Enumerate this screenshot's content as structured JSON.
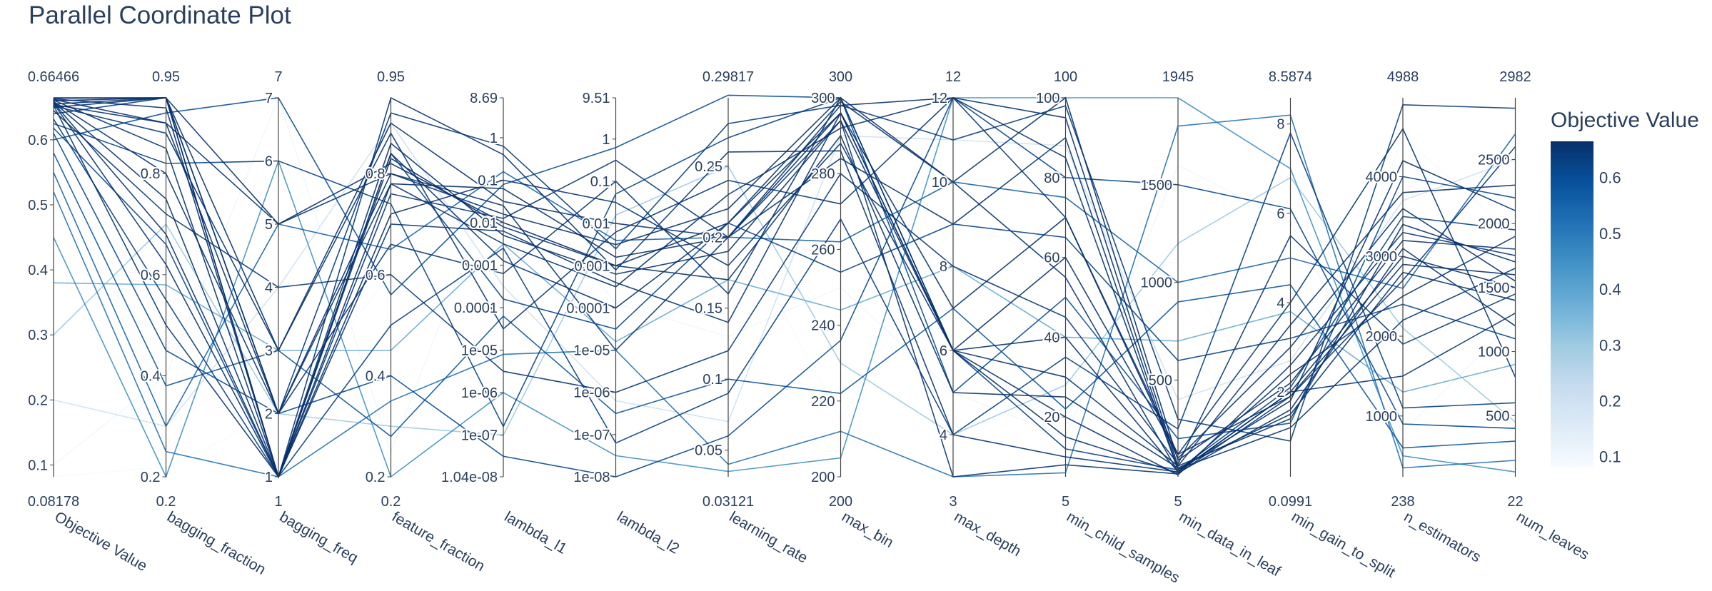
{
  "title": "Parallel Coordinate Plot",
  "colors": {
    "line_dark": "#08306b",
    "colorscale": [
      "#f7fbff",
      "#deebf7",
      "#c6dbef",
      "#9ecae1",
      "#6baed6",
      "#4292c6",
      "#2171b5",
      "#08519c",
      "#08306b"
    ],
    "axis": "#444444",
    "text": "#2a3f5f"
  },
  "chart_data": {
    "type": "parallel_coordinates",
    "title": "Parallel Coordinate Plot",
    "colorbar": {
      "title": "Objective Value",
      "ticks": [
        "0.1",
        "0.2",
        "0.3",
        "0.4",
        "0.5",
        "0.6"
      ],
      "range": [
        0.08178,
        0.66466
      ]
    },
    "dimensions": [
      {
        "label": "Objective Value",
        "range": [
          0.08178,
          0.66466
        ],
        "min_label": "0.08178",
        "max_label": "0.66466",
        "ticks": [
          [
            0.1,
            "0.1"
          ],
          [
            0.2,
            "0.2"
          ],
          [
            0.3,
            "0.3"
          ],
          [
            0.4,
            "0.4"
          ],
          [
            0.5,
            "0.5"
          ],
          [
            0.6,
            "0.6"
          ]
        ],
        "scale": "linear"
      },
      {
        "label": "bagging_fraction",
        "range": [
          0.2,
          0.95
        ],
        "min_label": "0.2",
        "max_label": "0.95",
        "ticks": [
          [
            0.2,
            "0.2"
          ],
          [
            0.4,
            "0.4"
          ],
          [
            0.6,
            "0.6"
          ],
          [
            0.8,
            "0.8"
          ]
        ],
        "scale": "linear"
      },
      {
        "label": "bagging_freq",
        "range": [
          1,
          7
        ],
        "min_label": "1",
        "max_label": "7",
        "ticks": [
          [
            1,
            "1"
          ],
          [
            2,
            "2"
          ],
          [
            3,
            "3"
          ],
          [
            4,
            "4"
          ],
          [
            5,
            "5"
          ],
          [
            6,
            "6"
          ],
          [
            7,
            "7"
          ]
        ],
        "scale": "linear"
      },
      {
        "label": "feature_fraction",
        "range": [
          0.2,
          0.95
        ],
        "min_label": "0.2",
        "max_label": "0.95",
        "ticks": [
          [
            0.2,
            "0.2"
          ],
          [
            0.4,
            "0.4"
          ],
          [
            0.6,
            "0.6"
          ],
          [
            0.8,
            "0.8"
          ]
        ],
        "scale": "linear"
      },
      {
        "label": "lambda_l1",
        "range": [
          -7.983,
          0.939
        ],
        "min_label": "",
        "max_label": "",
        "ticks": [
          [
            -7.983,
            "1.04e-08"
          ],
          [
            -7,
            "1e-07"
          ],
          [
            -6,
            "1e-06"
          ],
          [
            -5,
            "1e-05"
          ],
          [
            -4,
            "0.0001"
          ],
          [
            -3,
            "0.001"
          ],
          [
            -2,
            "0.01"
          ],
          [
            -1,
            "0.1"
          ],
          [
            0,
            "1"
          ],
          [
            0.939,
            "8.69"
          ]
        ],
        "scale": "log"
      },
      {
        "label": "lambda_l2",
        "range": [
          -8,
          0.978
        ],
        "min_label": "",
        "max_label": "",
        "ticks": [
          [
            -8,
            "1e-08"
          ],
          [
            -7,
            "1e-07"
          ],
          [
            -6,
            "1e-06"
          ],
          [
            -5,
            "1e-05"
          ],
          [
            -4,
            "0.0001"
          ],
          [
            -3,
            "0.001"
          ],
          [
            -2,
            "0.01"
          ],
          [
            -1,
            "0.1"
          ],
          [
            0,
            "1"
          ],
          [
            0.978,
            "9.51"
          ]
        ],
        "scale": "log"
      },
      {
        "label": "learning_rate",
        "range": [
          0.03121,
          0.29817
        ],
        "min_label": "0.03121",
        "max_label": "0.29817",
        "ticks": [
          [
            0.05,
            "0.05"
          ],
          [
            0.1,
            "0.1"
          ],
          [
            0.15,
            "0.15"
          ],
          [
            0.2,
            "0.2"
          ],
          [
            0.25,
            "0.25"
          ]
        ],
        "scale": "linear"
      },
      {
        "label": "max_bin",
        "range": [
          200,
          300
        ],
        "min_label": "200",
        "max_label": "300",
        "ticks": [
          [
            200,
            "200"
          ],
          [
            220,
            "220"
          ],
          [
            240,
            "240"
          ],
          [
            260,
            "260"
          ],
          [
            280,
            "280"
          ],
          [
            300,
            "300"
          ]
        ],
        "scale": "linear"
      },
      {
        "label": "max_depth",
        "range": [
          3,
          12
        ],
        "min_label": "3",
        "max_label": "12",
        "ticks": [
          [
            4,
            "4"
          ],
          [
            6,
            "6"
          ],
          [
            8,
            "8"
          ],
          [
            10,
            "10"
          ],
          [
            12,
            "12"
          ]
        ],
        "scale": "linear"
      },
      {
        "label": "min_child_samples",
        "range": [
          5,
          100
        ],
        "min_label": "5",
        "max_label": "100",
        "ticks": [
          [
            20,
            "20"
          ],
          [
            40,
            "40"
          ],
          [
            60,
            "60"
          ],
          [
            80,
            "80"
          ],
          [
            100,
            "100"
          ]
        ],
        "scale": "linear"
      },
      {
        "label": "min_data_in_leaf",
        "range": [
          5,
          1945
        ],
        "min_label": "5",
        "max_label": "1945",
        "ticks": [
          [
            500,
            "500"
          ],
          [
            1000,
            "1000"
          ],
          [
            1500,
            "1500"
          ]
        ],
        "scale": "linear"
      },
      {
        "label": "min_gain_to_split",
        "range": [
          0.0991,
          8.5874
        ],
        "min_label": "0.0991",
        "max_label": "8.5874",
        "ticks": [
          [
            2,
            "2"
          ],
          [
            4,
            "4"
          ],
          [
            6,
            "6"
          ],
          [
            8,
            "8"
          ]
        ],
        "scale": "linear"
      },
      {
        "label": "n_estimators",
        "range": [
          238,
          4988
        ],
        "min_label": "238",
        "max_label": "4988",
        "ticks": [
          [
            1000,
            "1000"
          ],
          [
            2000,
            "2000"
          ],
          [
            3000,
            "3000"
          ],
          [
            4000,
            "4000"
          ]
        ],
        "scale": "linear"
      },
      {
        "label": "num_leaves",
        "range": [
          22,
          2982
        ],
        "min_label": "22",
        "max_label": "2982",
        "ticks": [
          [
            500,
            "500"
          ],
          [
            1000,
            "1000"
          ],
          [
            1500,
            "1500"
          ],
          [
            2000,
            "2000"
          ],
          [
            2500,
            "2500"
          ]
        ],
        "scale": "linear"
      }
    ],
    "trials": [
      {
        "objective": 0.66466,
        "values": [
          0.95,
          5,
          0.82,
          -2.0,
          -3.0,
          0.21,
          296,
          6,
          60,
          120,
          1.9,
          2900,
          1600
        ]
      },
      {
        "objective": 0.664,
        "values": [
          0.95,
          1,
          0.78,
          -1.2,
          -2.8,
          0.2,
          298,
          12,
          95,
          60,
          1.4,
          3400,
          1700
        ]
      },
      {
        "objective": 0.663,
        "values": [
          0.93,
          1,
          0.86,
          -2.3,
          -3.2,
          0.19,
          294,
          6,
          40,
          30,
          2.0,
          3000,
          1500
        ]
      },
      {
        "objective": 0.662,
        "values": [
          0.9,
          2,
          0.8,
          -1.8,
          -2.5,
          0.22,
          300,
          10,
          100,
          90,
          2.2,
          3200,
          1800
        ]
      },
      {
        "objective": 0.661,
        "values": [
          0.85,
          1,
          0.83,
          -2.1,
          -3.0,
          0.17,
          290,
          5,
          25,
          50,
          1.5,
          2800,
          1400
        ]
      },
      {
        "objective": 0.66,
        "values": [
          0.95,
          3,
          0.9,
          -1.5,
          -2.0,
          0.2,
          296,
          7,
          70,
          100,
          3.0,
          3600,
          1550
        ]
      },
      {
        "objective": 0.659,
        "values": [
          0.8,
          2,
          0.78,
          -2.5,
          -3.5,
          0.23,
          292,
          12,
          85,
          40,
          1.8,
          4200,
          2100
        ]
      },
      {
        "objective": 0.658,
        "values": [
          0.75,
          1,
          0.72,
          -1.0,
          -1.5,
          0.18,
          288,
          6,
          15,
          25,
          1.6,
          3100,
          1200
        ]
      },
      {
        "objective": 0.657,
        "values": [
          0.68,
          1,
          0.84,
          -2.9,
          -4.0,
          0.21,
          299,
          10,
          55,
          30,
          2.4,
          2500,
          1900
        ]
      },
      {
        "objective": 0.656,
        "values": [
          0.62,
          1,
          0.95,
          -0.4,
          -3.1,
          0.26,
          286,
          4,
          10,
          30,
          2.0,
          1500,
          1300
        ]
      },
      {
        "objective": 0.655,
        "values": [
          0.95,
          2,
          0.66,
          -3.2,
          -1.0,
          0.16,
          300,
          6,
          30,
          60,
          3.5,
          3800,
          2300
        ]
      },
      {
        "objective": 0.654,
        "values": [
          0.9,
          5,
          0.8,
          -1.6,
          -5.0,
          0.2,
          284,
          9,
          90,
          45,
          1.2,
          2200,
          1650
        ]
      },
      {
        "objective": 0.653,
        "values": [
          0.5,
          1,
          0.7,
          -2.2,
          -3.4,
          0.14,
          296,
          6,
          20,
          15,
          2.6,
          3300,
          1750
        ]
      },
      {
        "objective": 0.652,
        "values": [
          0.88,
          3,
          0.88,
          -4.5,
          -2.2,
          0.24,
          272,
          12,
          70,
          120,
          4.0,
          4600,
          800
        ]
      },
      {
        "objective": 0.65,
        "values": [
          0.95,
          1,
          0.76,
          -1.9,
          -0.5,
          0.2,
          294,
          3,
          8,
          20,
          1.9,
          2700,
          2600
        ]
      },
      {
        "objective": 0.645,
        "values": [
          0.72,
          4,
          0.6,
          -5.5,
          -6.0,
          0.12,
          280,
          8,
          45,
          70,
          5.5,
          1900,
          1450
        ]
      },
      {
        "objective": 0.64,
        "values": [
          0.95,
          2,
          0.92,
          -0.2,
          -2.6,
          0.28,
          298,
          11,
          98,
          300,
          0.9,
          4900,
          2900
        ]
      },
      {
        "objective": 0.632,
        "values": [
          0.55,
          1,
          0.5,
          -2.6,
          -7.2,
          0.09,
          268,
          4,
          35,
          250,
          7.8,
          1100,
          600
        ]
      },
      {
        "objective": 0.625,
        "values": [
          0.82,
          6,
          0.74,
          -6.8,
          -1.3,
          0.27,
          300,
          6,
          12,
          40,
          2.1,
          3500,
          1950
        ]
      },
      {
        "objective": 0.618,
        "values": [
          0.66,
          1,
          0.84,
          -3.8,
          -4.5,
          0.21,
          254,
          9,
          65,
          600,
          3.2,
          2400,
          1100
        ]
      },
      {
        "objective": 0.61,
        "values": [
          0.45,
          2,
          0.4,
          -7.5,
          -8.0,
          0.06,
          236,
          12,
          80,
          1500,
          6.1,
          900,
          400
        ]
      },
      {
        "objective": 0.6,
        "values": [
          0.92,
          7,
          0.56,
          -1.1,
          -0.2,
          0.3,
          300,
          5,
          50,
          200,
          1.3,
          4000,
          2200
        ]
      },
      {
        "objective": 0.58,
        "values": [
          0.38,
          3,
          0.28,
          -4.2,
          -6.5,
          0.1,
          222,
          7,
          22,
          900,
          4.4,
          600,
          300
        ]
      },
      {
        "objective": 0.55,
        "values": [
          0.3,
          5,
          0.65,
          -0.8,
          -2.4,
          0.2,
          262,
          10,
          75,
          1000,
          5.0,
          2600,
          2700
        ]
      },
      {
        "objective": 0.52,
        "values": [
          0.25,
          1,
          0.35,
          -5.1,
          -5.0,
          0.04,
          212,
          3,
          6,
          1800,
          8.2,
          350,
          150
        ]
      },
      {
        "objective": 0.45,
        "values": [
          0.2,
          6,
          0.2,
          -6.0,
          -7.5,
          0.035,
          205,
          12,
          100,
          1945,
          7.0,
          500,
          60
        ]
      },
      {
        "objective": 0.38,
        "values": [
          0.58,
          3,
          0.45,
          -2.5,
          -4.8,
          0.17,
          244,
          8,
          40,
          700,
          3.8,
          1300,
          900
        ]
      },
      {
        "objective": 0.3,
        "values": [
          0.7,
          2,
          0.3,
          -7.0,
          -1.8,
          0.25,
          230,
          4,
          28,
          1200,
          6.8,
          2100,
          450
        ]
      },
      {
        "objective": 0.2,
        "values": [
          0.3,
          4,
          0.9,
          -3.5,
          -6.2,
          0.07,
          290,
          11,
          88,
          400,
          2.7,
          3700,
          2500
        ]
      },
      {
        "objective": 0.1,
        "values": [
          0.4,
          7,
          0.25,
          -0.5,
          -3.9,
          0.13,
          250,
          5,
          15,
          1600,
          5.8,
          800,
          1250
        ]
      },
      {
        "objective": 0.08178,
        "values": [
          0.22,
          2,
          0.6,
          -4.0,
          -2.0,
          0.22,
          215,
          9,
          60,
          1100,
          1.0,
          4500,
          1900
        ]
      }
    ]
  }
}
